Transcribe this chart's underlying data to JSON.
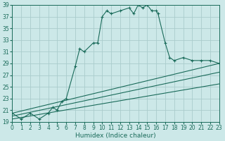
{
  "xlabel": "Humidex (Indice chaleur)",
  "bg_color": "#cce8e8",
  "grid_color": "#aacccc",
  "line_color": "#1a6b5a",
  "xlim": [
    0,
    23
  ],
  "ylim": [
    19,
    39
  ],
  "yticks": [
    19,
    21,
    23,
    25,
    27,
    29,
    31,
    33,
    35,
    37,
    39
  ],
  "xticks": [
    0,
    1,
    2,
    3,
    4,
    5,
    6,
    7,
    8,
    9,
    10,
    11,
    12,
    13,
    14,
    15,
    16,
    17,
    18,
    19,
    20,
    21,
    22,
    23
  ],
  "main_curve_x": [
    0,
    1,
    2,
    3,
    4,
    4.5,
    5,
    5.5,
    6,
    7,
    7.5,
    8,
    9,
    9.5,
    10,
    10.5,
    11,
    12,
    13,
    13.5,
    14,
    14.5,
    15,
    15.5,
    16,
    16.2,
    17,
    17.5,
    18,
    19,
    20,
    21,
    22,
    23
  ],
  "main_curve_y": [
    20.5,
    19.5,
    20.5,
    19.5,
    20.5,
    21.5,
    21.0,
    22.5,
    23.0,
    28.5,
    31.5,
    31.0,
    32.5,
    32.5,
    37.0,
    38.0,
    37.5,
    38.0,
    38.5,
    37.5,
    39.0,
    38.5,
    39.0,
    38.0,
    38.0,
    37.5,
    32.5,
    30.0,
    29.5,
    30.0,
    29.5,
    29.5,
    29.5,
    29.0
  ],
  "line1_x": [
    0,
    23
  ],
  "line1_y": [
    20.5,
    29.0
  ],
  "line2_x": [
    0,
    23
  ],
  "line2_y": [
    20.0,
    27.5
  ],
  "line3_x": [
    0,
    23
  ],
  "line3_y": [
    19.5,
    25.5
  ]
}
